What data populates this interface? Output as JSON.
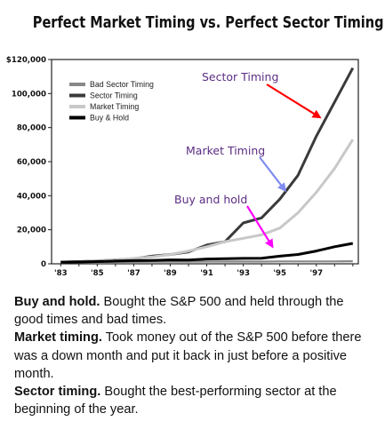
{
  "title": "Perfect Market Timing vs. Perfect Sector Timing",
  "chart_data": {
    "type": "line",
    "title": "Perfect Market Timing vs. Perfect Sector Timing",
    "xlabel": "",
    "ylabel": "",
    "x_tick_labels": [
      "'83",
      "'85",
      "'87",
      "'89",
      "'91",
      "'93",
      "'95",
      "'97"
    ],
    "y_tick_labels": [
      "0",
      "20,000",
      "40,000",
      "60,000",
      "80,000",
      "100,000",
      "$120,000"
    ],
    "ylim": [
      0,
      120000
    ],
    "xlim": [
      1982.5,
      1999.3
    ],
    "grid": false,
    "legend_position": "top-left",
    "x": [
      1983,
      1984,
      1985,
      1986,
      1987,
      1988,
      1989,
      1990,
      1991,
      1992,
      1993,
      1994,
      1995,
      1996,
      1997,
      1998,
      1999
    ],
    "series": [
      {
        "name": "Bad Sector Timing",
        "color": "#888888",
        "values": [
          1000,
          1000,
          1100,
          1100,
          1100,
          1200,
          1200,
          1200,
          1300,
          1300,
          1300,
          1300,
          1400,
          1400,
          1400,
          1400,
          1500
        ]
      },
      {
        "name": "Sector Timing",
        "color": "#3a3a3a",
        "values": [
          1000,
          1300,
          1700,
          2300,
          3000,
          4500,
          5500,
          7000,
          11000,
          13000,
          24000,
          27000,
          38000,
          52000,
          75000,
          95000,
          115000
        ]
      },
      {
        "name": "Market Timing",
        "color": "#c8c8c8",
        "values": [
          1000,
          1200,
          1600,
          2200,
          3200,
          4000,
          5500,
          7500,
          10000,
          13000,
          15000,
          17000,
          21000,
          30000,
          42000,
          56000,
          73000
        ]
      },
      {
        "name": "Buy & Hold",
        "color": "#000000",
        "values": [
          1000,
          1100,
          1300,
          1600,
          1900,
          2000,
          2300,
          2200,
          2800,
          3000,
          3200,
          3300,
          4500,
          5500,
          7500,
          10000,
          12000
        ]
      }
    ],
    "annotations": [
      {
        "text": "Sector Timing",
        "color": "#5b2d82",
        "arrow_color": "#ff0000",
        "points_to_x": 1997.2,
        "points_to_y": 86000
      },
      {
        "text": "Market Timing",
        "color": "#5b2d82",
        "arrow_color": "#7f8cf0",
        "points_to_x": 1995.3,
        "points_to_y": 43000
      },
      {
        "text": "Buy and hold",
        "color": "#5b2d82",
        "arrow_color": "#ff00ff",
        "points_to_x": 1994.6,
        "points_to_y": 10000
      }
    ]
  },
  "descriptions": [
    {
      "term": "Buy and hold.",
      "text": "Bought the S&P 500 and held through the good times and bad times."
    },
    {
      "term": "Market timing.",
      "text": "Took money out of the S&P 500 before there was a down month and put it back in just before a positive month."
    },
    {
      "term": "Sector timing.",
      "text": "Bought the best-performing sector at the beginning of the year."
    }
  ]
}
